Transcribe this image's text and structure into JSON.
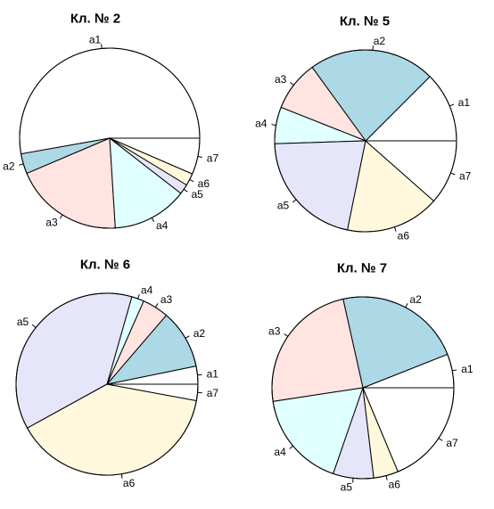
{
  "colors": {
    "a1": "#ffffff",
    "a2": "#add8e6",
    "a3": "#ffe4e1",
    "a4": "#e0ffff",
    "a5": "#e6e6fa",
    "a6": "#fff8dc",
    "a7": "#ffffff"
  },
  "chart_data": [
    {
      "type": "pie",
      "title": "Кл. № 2",
      "start_angle_deg": 0,
      "direction": "counterclockwise",
      "slices": [
        {
          "label": "a1",
          "value": 52.8
        },
        {
          "label": "a2",
          "value": 3.6
        },
        {
          "label": "a3",
          "value": 19.6
        },
        {
          "label": "a4",
          "value": 13.5
        },
        {
          "label": "a5",
          "value": 1.8
        },
        {
          "label": "a6",
          "value": 2.2
        },
        {
          "label": "a7",
          "value": 6.5
        }
      ]
    },
    {
      "type": "pie",
      "title": "Кл. № 5",
      "start_angle_deg": 0,
      "direction": "counterclockwise",
      "slices": [
        {
          "label": "a1",
          "value": 12.5
        },
        {
          "label": "a2",
          "value": 22.5
        },
        {
          "label": "a3",
          "value": 9
        },
        {
          "label": "a4",
          "value": 6.5
        },
        {
          "label": "a5",
          "value": 21.3
        },
        {
          "label": "a6",
          "value": 16.7
        },
        {
          "label": "a7",
          "value": 11.5
        }
      ]
    },
    {
      "type": "pie",
      "title": "Кл. № 6",
      "start_angle_deg": 0,
      "direction": "counterclockwise",
      "slices": [
        {
          "label": "a1",
          "value": 3.2
        },
        {
          "label": "a2",
          "value": 10.5
        },
        {
          "label": "a3",
          "value": 4.7
        },
        {
          "label": "a4",
          "value": 2.2
        },
        {
          "label": "a5",
          "value": 37.4
        },
        {
          "label": "a6",
          "value": 39.1
        },
        {
          "label": "a7",
          "value": 2.9
        }
      ]
    },
    {
      "type": "pie",
      "title": "Кл. № 7",
      "start_angle_deg": 0,
      "direction": "counterclockwise",
      "slices": [
        {
          "label": "a1",
          "value": 6
        },
        {
          "label": "a2",
          "value": 22.5
        },
        {
          "label": "a3",
          "value": 23.9
        },
        {
          "label": "a4",
          "value": 17.3
        },
        {
          "label": "a5",
          "value": 7.2
        },
        {
          "label": "a6",
          "value": 4.4
        },
        {
          "label": "a7",
          "value": 18.7
        }
      ]
    }
  ]
}
